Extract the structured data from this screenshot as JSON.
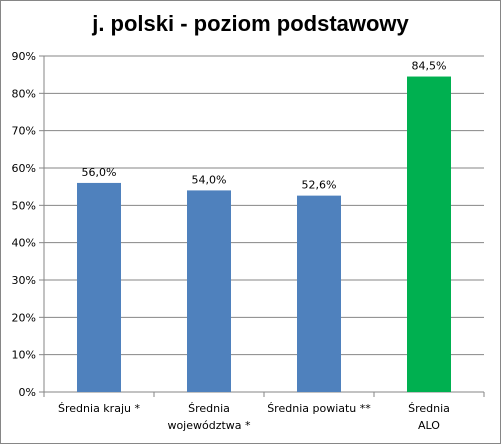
{
  "chart_data": {
    "type": "bar",
    "title": "j. polski - poziom podstawowy",
    "xlabel": "",
    "ylabel": "",
    "categories": [
      [
        "Średnia kraju *"
      ],
      [
        "Średnia",
        "województwa *"
      ],
      [
        "Średnia powiatu **"
      ],
      [
        "Średnia",
        "ALO"
      ]
    ],
    "values": [
      56.0,
      54.0,
      52.6,
      84.5
    ],
    "data_labels": [
      "56,0%",
      "54,0%",
      "52,6%",
      "84,5%"
    ],
    "bar_colors": [
      "#4F81BD",
      "#4F81BD",
      "#4F81BD",
      "#00B050"
    ],
    "ylim": [
      0,
      90
    ],
    "yticks": [
      0,
      10,
      20,
      30,
      40,
      50,
      60,
      70,
      80,
      90
    ],
    "ytick_labels": [
      "0%",
      "10%",
      "20%",
      "30%",
      "40%",
      "50%",
      "60%",
      "70%",
      "80%",
      "90%"
    ],
    "grid": true,
    "legend": "none"
  }
}
